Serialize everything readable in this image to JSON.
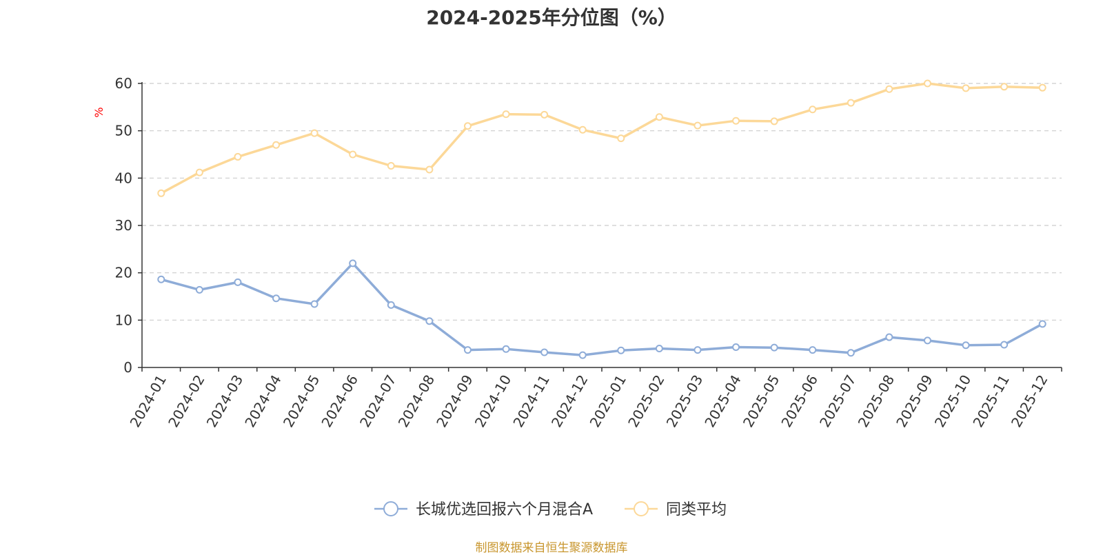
{
  "chart_data": {
    "type": "line",
    "title": "2024-2025年分位图（%）",
    "ylabel": "%",
    "xlabel": "",
    "ylim": [
      0,
      60
    ],
    "yticks": [
      0,
      10,
      20,
      30,
      40,
      50,
      60
    ],
    "grid": "horizontal dashed",
    "legend_position": "bottom",
    "categories": [
      "2024-01",
      "2024-02",
      "2024-03",
      "2024-04",
      "2024-05",
      "2024-06",
      "2024-07",
      "2024-08",
      "2024-09",
      "2024-10",
      "2024-11",
      "2024-12",
      "2025-01",
      "2025-02",
      "2025-03",
      "2025-04",
      "2025-05",
      "2025-06",
      "2025-07",
      "2025-08",
      "2025-09",
      "2025-10",
      "2025-11",
      "2025-12"
    ],
    "series": [
      {
        "name": "长城优选回报六个月混合A",
        "color": "#8eacd8",
        "values": [
          18.6,
          16.4,
          18.0,
          14.6,
          13.4,
          22.0,
          13.2,
          9.8,
          3.7,
          3.9,
          3.2,
          2.6,
          3.6,
          4.0,
          3.7,
          4.3,
          4.2,
          3.7,
          3.1,
          6.4,
          5.7,
          4.7,
          4.8,
          9.2
        ]
      },
      {
        "name": "同类平均",
        "color": "#fcd898",
        "values": [
          36.8,
          41.2,
          44.5,
          47.0,
          49.5,
          45.0,
          42.6,
          41.8,
          51.0,
          53.5,
          53.4,
          50.2,
          48.4,
          52.9,
          51.1,
          52.1,
          52.0,
          54.5,
          55.9,
          58.8,
          60.0,
          59.0,
          59.3,
          59.1
        ]
      }
    ]
  },
  "footer": {
    "source": "制图数据来自恒生聚源数据库"
  }
}
